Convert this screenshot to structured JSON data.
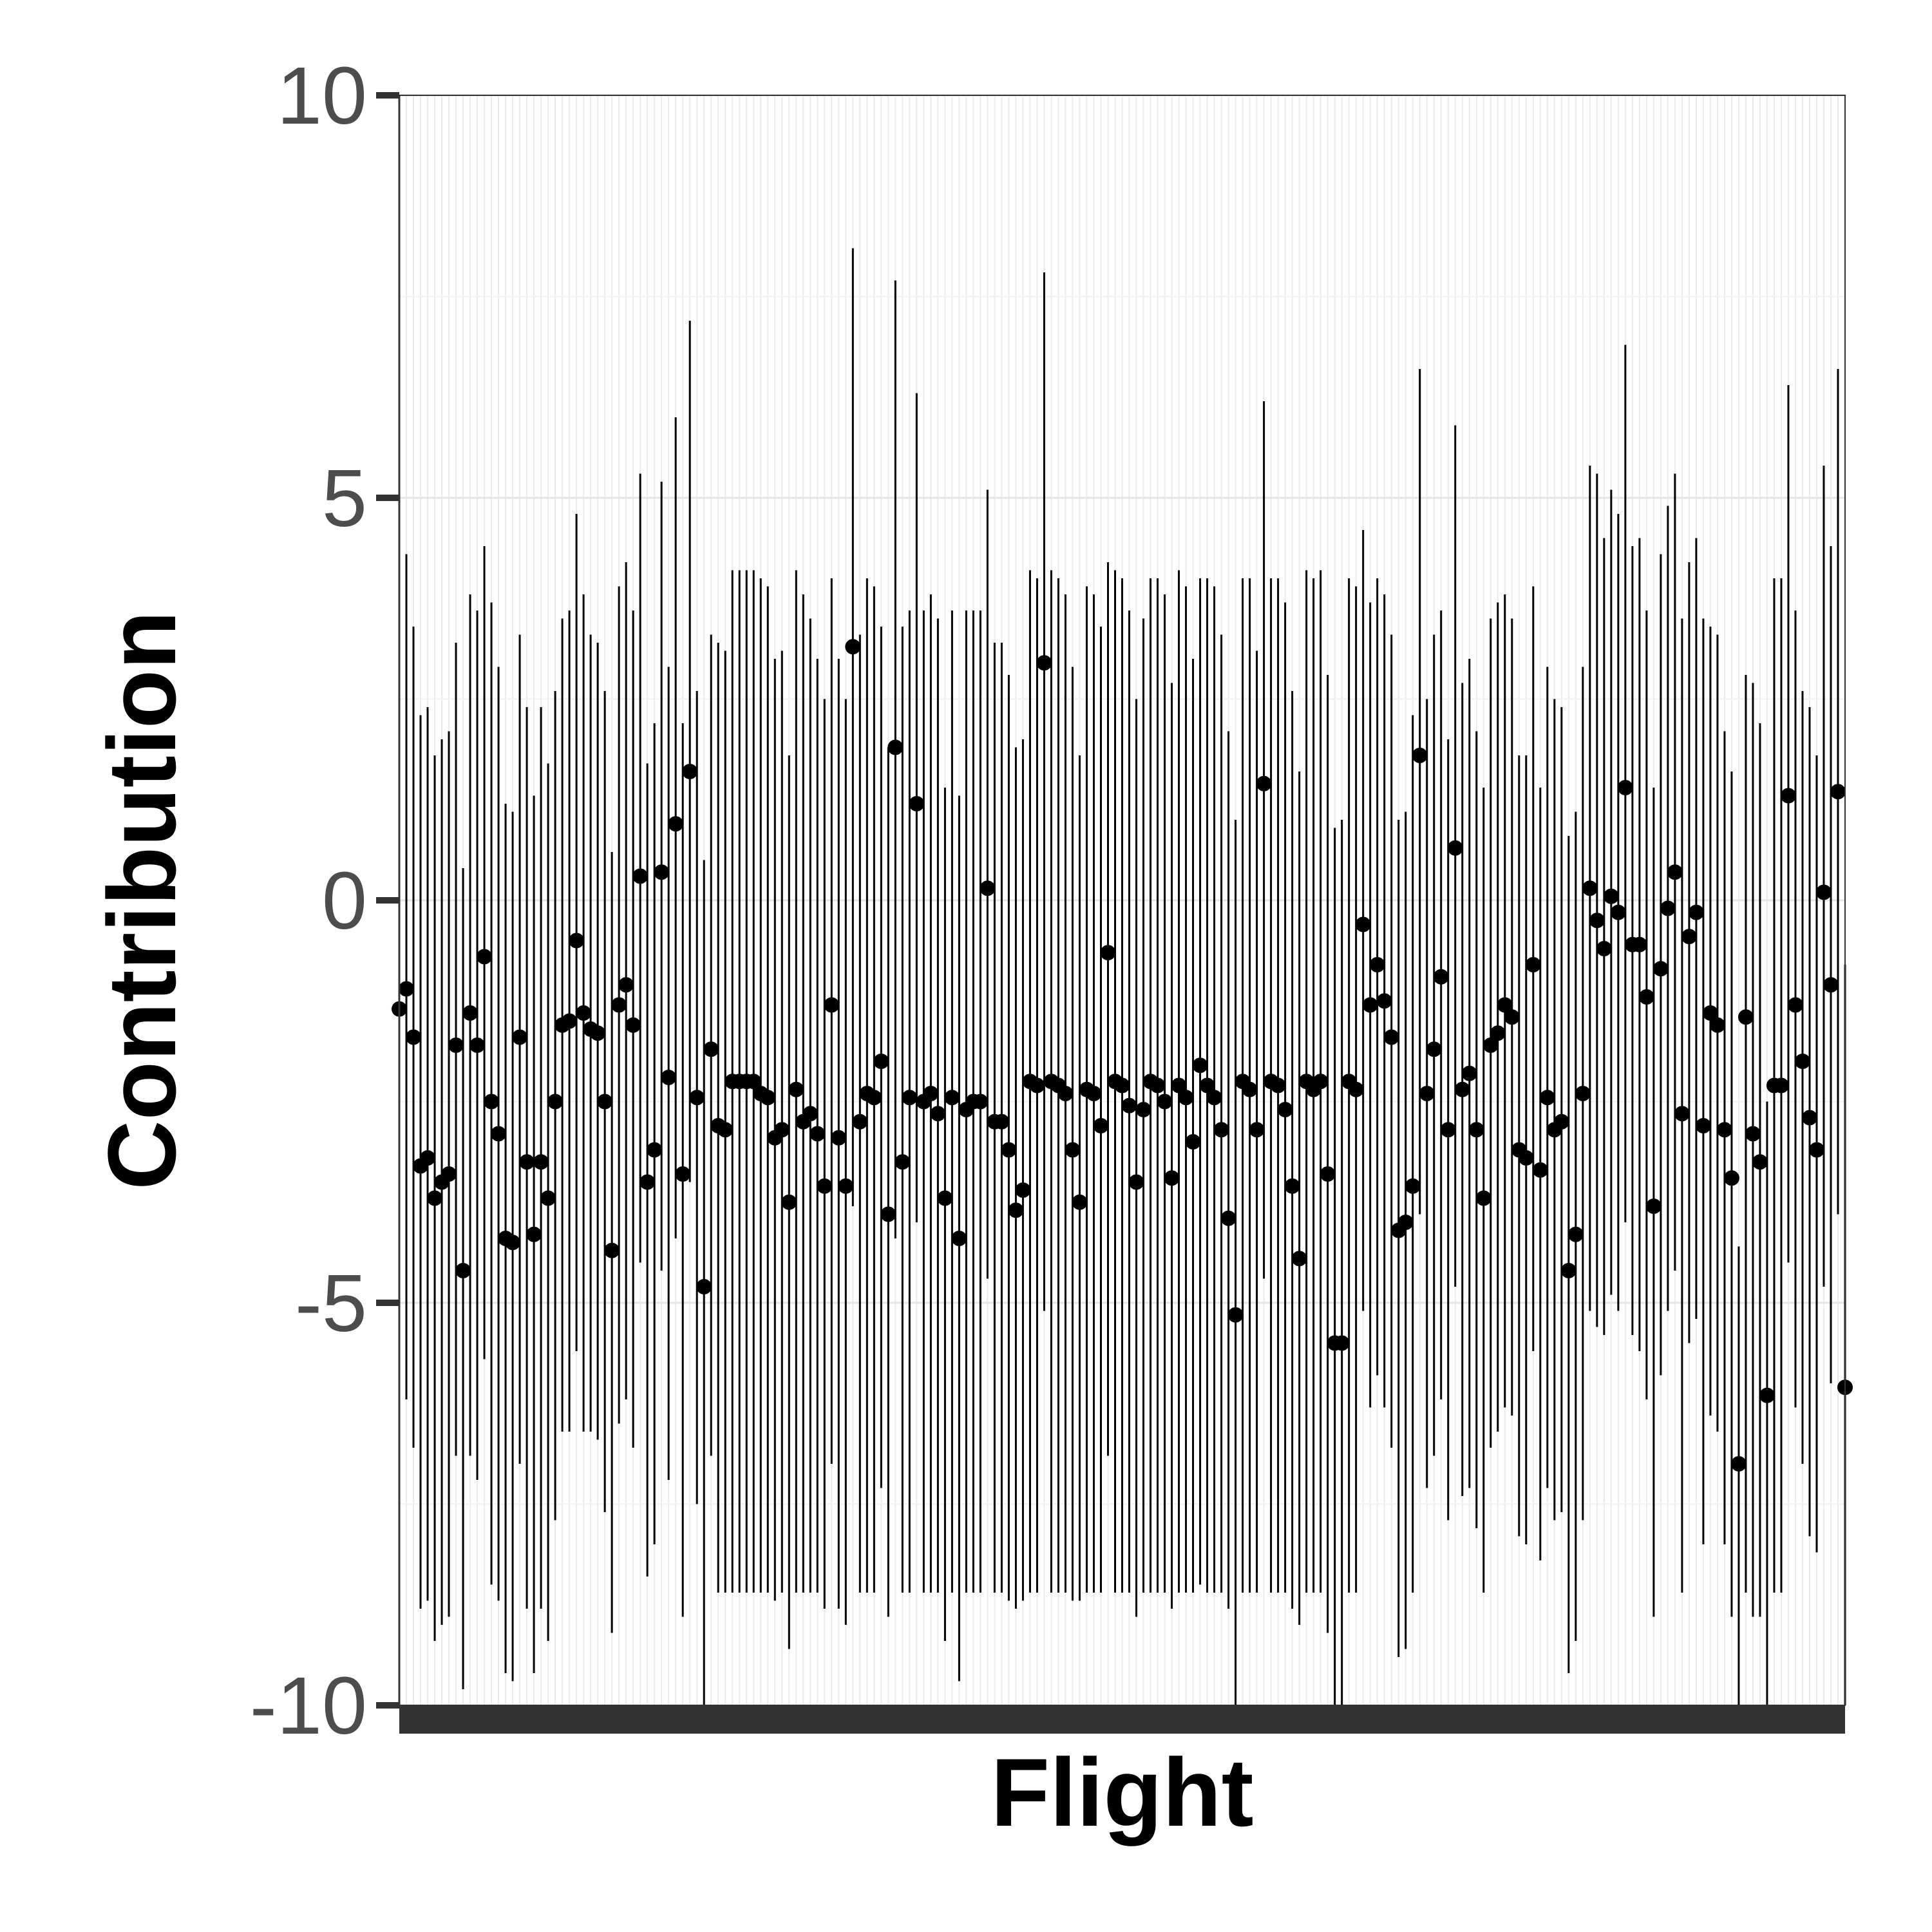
{
  "chart_data": {
    "type": "scatter",
    "variant": "point-with-vertical-interval",
    "title": "",
    "xlabel": "Flight",
    "ylabel": "Contribution",
    "ylim": [
      -10,
      10
    ],
    "yticks": [
      -10,
      -5,
      0,
      5,
      10
    ],
    "ytick_labels": [
      "-10",
      "-5",
      "0",
      "5",
      "10"
    ],
    "xtick_labels": [],
    "grid": true,
    "legend": "none",
    "point_color": "#000000",
    "interval_color": "#000000",
    "series": [
      {
        "points": [
          -1.35,
          -1.1,
          -1.7,
          -3.3,
          -3.2,
          -3.7,
          -3.5,
          -3.4,
          -1.8,
          -4.6,
          -1.4,
          -1.8,
          -0.7,
          -2.5,
          -2.9,
          -4.2,
          -4.25,
          -1.7,
          -3.25,
          -4.15,
          -3.25,
          -3.7,
          -2.5,
          -1.55,
          -1.5,
          -0.5,
          -1.4,
          -1.6,
          -1.65,
          -2.5,
          -4.35,
          -1.3,
          -1.05,
          -1.55,
          0.3,
          -3.5,
          -3.1,
          0.35,
          -2.2,
          0.95,
          -3.4,
          1.6,
          -2.45,
          -4.8,
          -1.85,
          -2.8,
          -2.85,
          -2.25,
          -2.25,
          -2.25,
          -2.25,
          -2.4,
          -2.45,
          -2.95,
          -2.85,
          -3.75,
          -2.35,
          -2.75,
          -2.65,
          -2.9,
          -3.55,
          -1.3,
          -2.95,
          -3.55,
          3.15,
          -2.75,
          -2.4,
          -2.45,
          -2.0,
          -3.9,
          1.9,
          -3.25,
          -2.45,
          1.2,
          -2.5,
          -2.4,
          -2.65,
          -3.7,
          -2.45,
          -4.2,
          -2.6,
          -2.5,
          -2.5,
          0.15,
          -2.75,
          -2.75,
          -3.1,
          -3.85,
          -3.6,
          -2.25,
          -2.3,
          2.95,
          -2.25,
          -2.3,
          -2.4,
          -3.1,
          -3.75,
          -2.35,
          -2.4,
          -2.8,
          -0.65,
          -2.25,
          -2.3,
          -2.55,
          -3.5,
          -2.6,
          -2.25,
          -2.3,
          -2.5,
          -3.45,
          -2.3,
          -2.45,
          -3.0,
          -2.05,
          -2.3,
          -2.45,
          -2.85,
          -3.95,
          -5.15,
          -2.25,
          -2.35,
          -2.85,
          1.45,
          -2.25,
          -2.3,
          -2.6,
          -3.55,
          -4.45,
          -2.25,
          -2.35,
          -2.25,
          -3.4,
          -5.5,
          -5.5,
          -2.25,
          -2.35,
          -0.3,
          -1.3,
          -0.8,
          -1.25,
          -1.7,
          -4.1,
          -4.0,
          -3.55,
          1.8,
          -2.4,
          -1.85,
          -0.95,
          -2.85,
          0.65,
          -2.35,
          -2.15,
          -2.85,
          -3.7,
          -1.8,
          -1.65,
          -1.3,
          -1.45,
          -3.1,
          -3.2,
          -0.8,
          -3.35,
          -2.45,
          -2.85,
          -2.75,
          -4.6,
          -4.15,
          -2.4,
          0.15,
          -0.25,
          -0.6,
          0.05,
          -0.15,
          1.4,
          -0.55,
          -0.55,
          -1.2,
          -3.8,
          -0.85,
          -0.1,
          0.35,
          -2.65,
          -0.45,
          -0.15,
          -2.8,
          -1.4,
          -1.55,
          -2.85,
          -3.45,
          -7.0,
          -1.45,
          -2.9,
          -3.25,
          -6.15,
          -2.3,
          -2.3,
          1.3,
          -1.3,
          -2.0,
          -2.7,
          -3.1,
          0.1,
          -1.05,
          1.35,
          -6.05
        ],
        "lower": [
          -6.5,
          -6.2,
          -6.8,
          -8.8,
          -8.7,
          -9.2,
          -9.0,
          -8.9,
          -6.9,
          -9.8,
          -6.9,
          -7.2,
          -5.7,
          -8.5,
          -8.7,
          -9.6,
          -9.7,
          -7.0,
          -8.8,
          -9.6,
          -8.8,
          -9.2,
          -7.7,
          -6.6,
          -6.6,
          -5.6,
          -6.6,
          -6.6,
          -6.7,
          -7.6,
          -9.1,
          -6.5,
          -6.2,
          -6.8,
          -4.5,
          -8.4,
          -8.0,
          -4.6,
          -7.2,
          -4.2,
          -8.9,
          -3.5,
          -7.5,
          -10.0,
          -6.9,
          -8.6,
          -8.6,
          -8.6,
          -8.6,
          -8.6,
          -8.6,
          -8.6,
          -8.6,
          -8.7,
          -8.6,
          -9.3,
          -8.6,
          -8.6,
          -8.6,
          -8.6,
          -8.8,
          -7.0,
          -8.8,
          -9.0,
          -3.8,
          -8.6,
          -8.6,
          -8.6,
          -7.3,
          -8.9,
          -4.2,
          -8.6,
          -8.6,
          -4.0,
          -8.6,
          -8.6,
          -8.6,
          -9.2,
          -8.6,
          -9.7,
          -8.6,
          -8.6,
          -8.6,
          -4.7,
          -8.6,
          -8.6,
          -8.7,
          -8.8,
          -8.7,
          -8.6,
          -8.6,
          -5.1,
          -8.6,
          -8.6,
          -8.6,
          -8.7,
          -8.7,
          -8.6,
          -8.6,
          -8.6,
          -6.9,
          -8.6,
          -8.6,
          -8.6,
          -8.9,
          -8.6,
          -8.6,
          -8.6,
          -8.6,
          -8.8,
          -8.6,
          -8.6,
          -8.6,
          -8.5,
          -8.6,
          -8.6,
          -8.6,
          -8.8,
          -10.0,
          -8.6,
          -8.6,
          -8.6,
          -4.7,
          -8.6,
          -8.6,
          -8.6,
          -8.8,
          -9.0,
          -8.6,
          -8.6,
          -8.6,
          -9.1,
          -10.0,
          -10.0,
          -8.6,
          -8.6,
          -5.1,
          -6.3,
          -5.9,
          -6.3,
          -6.8,
          -9.4,
          -9.3,
          -8.6,
          -3.9,
          -7.3,
          -6.9,
          -6.2,
          -7.7,
          -4.8,
          -7.4,
          -7.3,
          -7.8,
          -8.6,
          -6.8,
          -6.6,
          -6.3,
          -6.4,
          -7.9,
          -8.0,
          -5.6,
          -8.2,
          -7.3,
          -7.7,
          -7.6,
          -9.6,
          -9.2,
          -7.7,
          -5.1,
          -5.3,
          -5.4,
          -4.9,
          -5.1,
          -4.0,
          -5.4,
          -5.6,
          -6.2,
          -8.9,
          -5.9,
          -5.1,
          -4.6,
          -8.6,
          -5.5,
          -5.2,
          -8.0,
          -6.4,
          -6.6,
          -8.0,
          -8.9,
          -10.0,
          -8.6,
          -8.9,
          -8.9,
          -10.0,
          -8.6,
          -8.6,
          -4.5,
          -6.3,
          -7.0,
          -7.9,
          -8.1,
          -4.8,
          -6.0,
          -3.9,
          -10.0
        ],
        "upper": [
          3.8,
          4.3,
          3.4,
          2.3,
          2.4,
          1.8,
          2.0,
          2.1,
          3.2,
          0.4,
          3.8,
          3.6,
          4.4,
          3.7,
          2.9,
          1.2,
          1.1,
          3.3,
          2.4,
          1.3,
          2.4,
          1.7,
          2.6,
          3.5,
          3.6,
          4.8,
          3.8,
          3.3,
          3.2,
          2.6,
          0.6,
          3.9,
          4.2,
          3.6,
          5.3,
          1.7,
          2.2,
          5.2,
          2.9,
          6.0,
          2.2,
          7.2,
          2.6,
          0.5,
          3.3,
          3.2,
          3.1,
          4.1,
          4.1,
          4.1,
          4.1,
          4.0,
          3.9,
          3.0,
          3.1,
          1.8,
          4.1,
          3.8,
          3.5,
          3.0,
          2.5,
          4.0,
          3.0,
          2.5,
          8.1,
          3.3,
          4.0,
          3.9,
          3.4,
          1.9,
          7.7,
          3.4,
          3.6,
          6.3,
          3.6,
          3.8,
          3.5,
          1.4,
          3.6,
          1.3,
          3.6,
          3.6,
          3.6,
          5.1,
          3.2,
          3.2,
          2.8,
          1.9,
          2.0,
          4.1,
          4.0,
          7.8,
          4.1,
          4.0,
          3.8,
          2.9,
          1.8,
          3.9,
          3.8,
          3.4,
          4.2,
          4.1,
          4.0,
          3.6,
          2.5,
          3.5,
          4.0,
          4.0,
          3.8,
          2.7,
          4.1,
          3.9,
          3.0,
          4.0,
          4.0,
          3.9,
          3.3,
          2.1,
          1.0,
          4.0,
          4.0,
          3.1,
          6.2,
          4.0,
          4.0,
          3.7,
          2.6,
          1.6,
          4.1,
          4.0,
          4.1,
          2.8,
          0.9,
          1.0,
          4.0,
          3.9,
          4.6,
          3.7,
          4.0,
          3.8,
          3.3,
          1.0,
          1.1,
          2.3,
          6.6,
          2.5,
          3.3,
          3.6,
          2.0,
          5.9,
          2.7,
          3.0,
          2.1,
          1.4,
          3.5,
          3.7,
          3.8,
          3.5,
          1.8,
          1.8,
          3.9,
          1.4,
          2.9,
          2.5,
          2.4,
          0.8,
          1.1,
          2.9,
          5.4,
          5.3,
          4.5,
          5.1,
          4.8,
          6.9,
          4.4,
          4.5,
          3.6,
          1.4,
          4.3,
          4.9,
          5.3,
          3.5,
          4.2,
          4.5,
          3.5,
          3.4,
          3.3,
          2.1,
          1.6,
          -4.3,
          2.8,
          2.7,
          2.2,
          -2.5,
          4.0,
          4.0,
          6.4,
          3.6,
          2.6,
          2.4,
          1.8,
          5.4,
          4.4,
          6.6,
          -0.8
        ]
      }
    ]
  }
}
